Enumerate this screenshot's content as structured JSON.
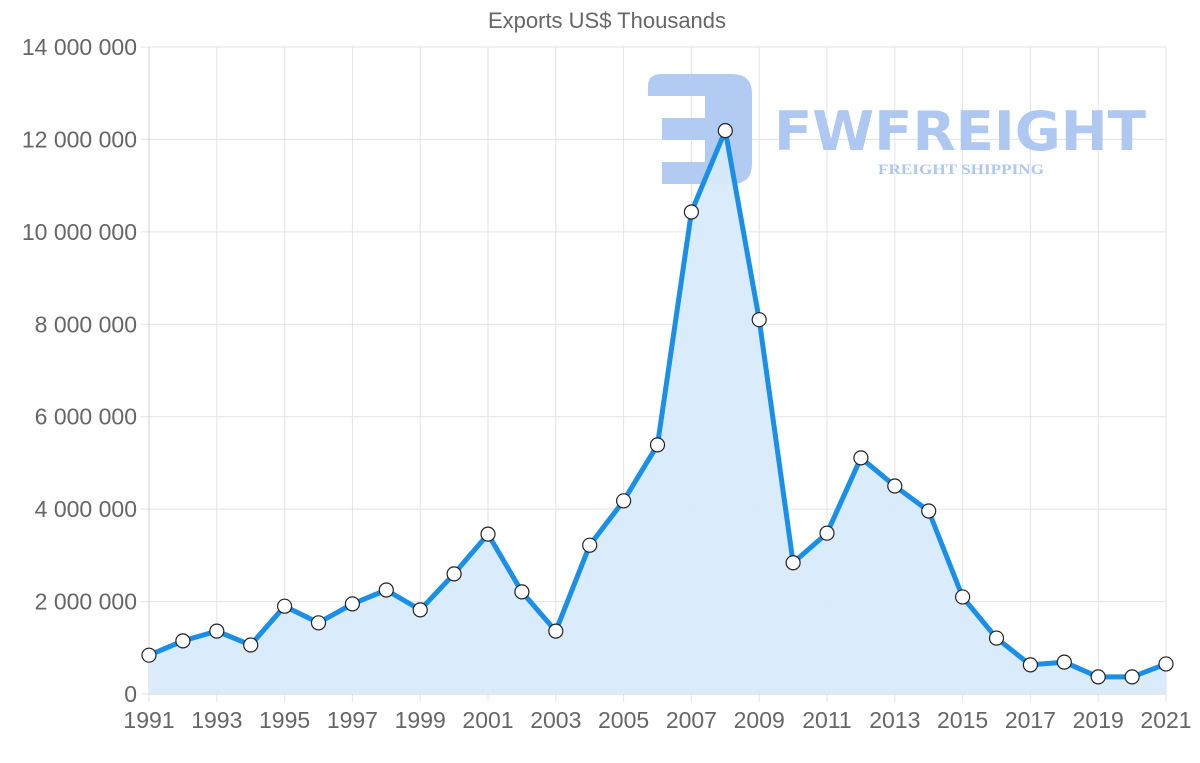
{
  "chart_data": {
    "type": "line",
    "title": "Exports US$ Thousands",
    "xlabel": "",
    "ylabel": "",
    "ylim": [
      0,
      14000000
    ],
    "grid": true,
    "fill": true,
    "legend": null,
    "y_ticks": [
      "0",
      "2 000 000",
      "4 000 000",
      "6 000 000",
      "8 000 000",
      "10 000 000",
      "12 000 000",
      "14 000 000"
    ],
    "x_tick_labels": [
      "1991",
      "1993",
      "1995",
      "1997",
      "1999",
      "2001",
      "2003",
      "2005",
      "2007",
      "2009",
      "2011",
      "2013",
      "2015",
      "2017",
      "2019",
      "2021"
    ],
    "x": [
      1991,
      1992,
      1993,
      1994,
      1995,
      1996,
      1997,
      1998,
      1999,
      2000,
      2001,
      2002,
      2003,
      2004,
      2005,
      2006,
      2007,
      2008,
      2009,
      2010,
      2011,
      2012,
      2013,
      2014,
      2015,
      2016,
      2017,
      2018,
      2019,
      2020,
      2021
    ],
    "series": [
      {
        "name": "Exports US$ Thousands",
        "color": "#1a8fe8",
        "fill_color": "#d8eafb",
        "values": [
          840000,
          1150000,
          1360000,
          1060000,
          1900000,
          1540000,
          1950000,
          2250000,
          1820000,
          2600000,
          3460000,
          2210000,
          1360000,
          3220000,
          4180000,
          5390000,
          10430000,
          12190000,
          8100000,
          2840000,
          3480000,
          5110000,
          4500000,
          3960000,
          2100000,
          1210000,
          630000,
          690000,
          370000,
          370000,
          650000
        ]
      }
    ]
  },
  "watermark": {
    "brand": "FWFREIGHT",
    "tagline": "FREIGHT SHIPPING",
    "color": "#aec8f2"
  }
}
